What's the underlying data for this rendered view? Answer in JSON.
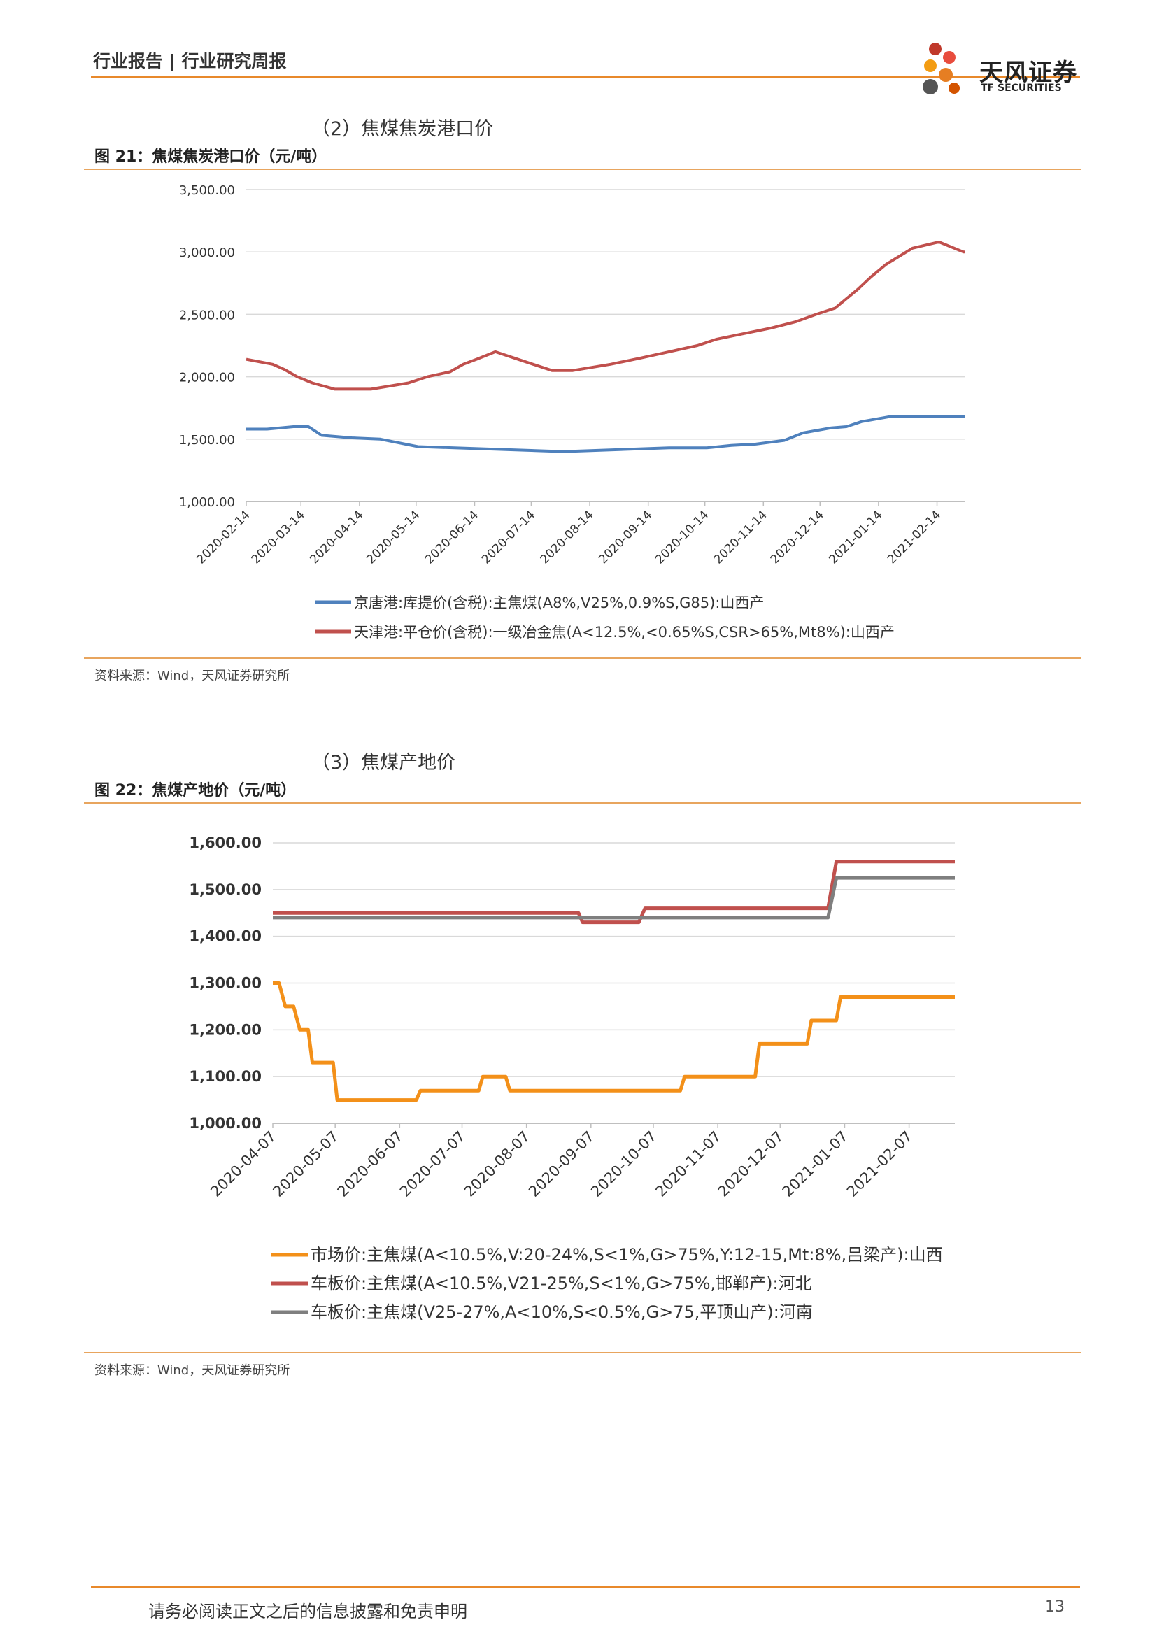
{
  "header": {
    "category": "行业报告 | 行业研究周报",
    "logo_cn": "天风证券",
    "logo_en": "TF SECURITIES"
  },
  "section1": {
    "title": "（2）焦煤焦炭港口价",
    "figure_title": "图 21：焦煤焦炭港口价（元/吨）",
    "source": "资料来源：Wind，天风证券研究所"
  },
  "section2": {
    "title": "（3）焦煤产地价",
    "figure_title": "图 22：焦煤产地价（元/吨）",
    "source": "资料来源：Wind，天风证券研究所"
  },
  "footer": {
    "disclaimer": "请务必阅读正文之后的信息披露和免责申明",
    "page": "13"
  },
  "chart_data": [
    {
      "type": "line",
      "title": "",
      "ylim": [
        1000,
        3500
      ],
      "yticks": [
        1000,
        1500,
        2000,
        2500,
        3000,
        3500
      ],
      "ytick_labels": [
        "1,000.00",
        "1,500.00",
        "2,000.00",
        "2,500.00",
        "3,000.00",
        "3,500.00"
      ],
      "xlim": [
        "2020-02-14",
        "2021-03-01"
      ],
      "xticks": [
        "2020-02-14",
        "2020-03-14",
        "2020-04-14",
        "2020-05-14",
        "2020-06-14",
        "2020-07-14",
        "2020-08-14",
        "2020-09-14",
        "2020-10-14",
        "2020-11-14",
        "2020-12-14",
        "2021-01-14",
        "2021-02-14"
      ],
      "grid": true,
      "legend_position": "bottom",
      "series": [
        {
          "name": "京唐港:库提价(含税):主焦煤(A8%,V25%,0.9%S,G85):山西产",
          "color": "#4f81bd",
          "x": [
            "2020-02-14",
            "2020-02-25",
            "2020-03-10",
            "2020-03-18",
            "2020-03-25",
            "2020-04-10",
            "2020-04-25",
            "2020-05-15",
            "2020-07-31",
            "2020-09-25",
            "2020-10-15",
            "2020-10-28",
            "2020-11-10",
            "2020-11-25",
            "2020-12-05",
            "2020-12-20",
            "2020-12-28",
            "2021-01-05",
            "2021-01-20",
            "2021-03-01"
          ],
          "values": [
            1580,
            1580,
            1600,
            1600,
            1530,
            1510,
            1500,
            1440,
            1400,
            1430,
            1430,
            1450,
            1460,
            1490,
            1550,
            1590,
            1600,
            1640,
            1680,
            1680
          ]
        },
        {
          "name": "天津港:平仓价(含税):一级冶金焦(A<12.5%,<0.65%S,CSR>65%,Mt8%):山西产",
          "color": "#c0504d",
          "x": [
            "2020-02-14",
            "2020-02-28",
            "2020-03-05",
            "2020-03-12",
            "2020-03-20",
            "2020-04-01",
            "2020-04-20",
            "2020-05-10",
            "2020-05-20",
            "2020-06-01",
            "2020-06-08",
            "2020-06-15",
            "2020-06-25",
            "2020-07-05",
            "2020-07-15",
            "2020-07-25",
            "2020-08-05",
            "2020-08-25",
            "2020-09-10",
            "2020-09-25",
            "2020-10-10",
            "2020-10-20",
            "2020-11-05",
            "2020-11-18",
            "2020-12-01",
            "2020-12-12",
            "2020-12-22",
            "2021-01-03",
            "2021-01-10",
            "2021-01-18",
            "2021-02-01",
            "2021-02-15",
            "2021-02-28",
            "2021-03-01"
          ],
          "values": [
            2140,
            2100,
            2060,
            2000,
            1950,
            1900,
            1900,
            1950,
            2000,
            2040,
            2100,
            2140,
            2200,
            2150,
            2100,
            2050,
            2050,
            2100,
            2150,
            2200,
            2250,
            2300,
            2350,
            2390,
            2440,
            2500,
            2550,
            2700,
            2800,
            2900,
            3030,
            3080,
            3000,
            3000
          ]
        }
      ]
    },
    {
      "type": "line",
      "title": "",
      "ylim": [
        1000,
        1600
      ],
      "yticks": [
        1000,
        1100,
        1200,
        1300,
        1400,
        1500,
        1600
      ],
      "ytick_labels": [
        "1,000.00",
        "1,100.00",
        "1,200.00",
        "1,300.00",
        "1,400.00",
        "1,500.00",
        "1,600.00"
      ],
      "xlim": [
        "2020-04-07",
        "2021-03-01"
      ],
      "xticks": [
        "2020-04-07",
        "2020-05-07",
        "2020-06-07",
        "2020-07-07",
        "2020-08-07",
        "2020-09-07",
        "2020-10-07",
        "2020-11-07",
        "2020-12-07",
        "2021-01-07",
        "2021-02-07"
      ],
      "grid": true,
      "legend_position": "bottom",
      "series": [
        {
          "name": "市场价:主焦煤(A<10.5%,V:20-24%,S<1%,G>75%,Y:12-15,Mt:8%,吕梁产):山西",
          "color": "#f39019",
          "x": [
            "2020-04-07",
            "2020-04-10",
            "2020-04-13",
            "2020-04-17",
            "2020-04-20",
            "2020-04-24",
            "2020-04-26",
            "2020-05-06",
            "2020-05-08",
            "2020-06-15",
            "2020-06-17",
            "2020-07-15",
            "2020-07-17",
            "2020-07-28",
            "2020-07-30",
            "2020-10-20",
            "2020-10-22",
            "2020-11-25",
            "2020-11-27",
            "2020-12-20",
            "2020-12-22",
            "2021-01-03",
            "2021-01-05",
            "2021-03-01"
          ],
          "values": [
            1300,
            1300,
            1250,
            1250,
            1200,
            1200,
            1130,
            1130,
            1050,
            1050,
            1070,
            1070,
            1100,
            1100,
            1070,
            1070,
            1100,
            1100,
            1170,
            1170,
            1220,
            1220,
            1270,
            1270
          ]
        },
        {
          "name": "车板价:主焦煤(A<10.5%,V21-25%,S<1%,G>75%,邯郸产):河北",
          "color": "#c0504d",
          "x": [
            "2020-04-07",
            "2020-09-01",
            "2020-09-03",
            "2020-09-30",
            "2020-10-03",
            "2020-12-30",
            "2021-01-03",
            "2021-03-01"
          ],
          "values": [
            1450,
            1450,
            1430,
            1430,
            1460,
            1460,
            1560,
            1560
          ]
        },
        {
          "name": "车板价:主焦煤(V25-27%,A<10%,S<0.5%,G>75,平顶山产):河南",
          "color": "#7f7f7f",
          "x": [
            "2020-04-07",
            "2020-12-30",
            "2021-01-03",
            "2021-03-01"
          ],
          "values": [
            1440,
            1440,
            1525,
            1525
          ]
        }
      ]
    }
  ]
}
